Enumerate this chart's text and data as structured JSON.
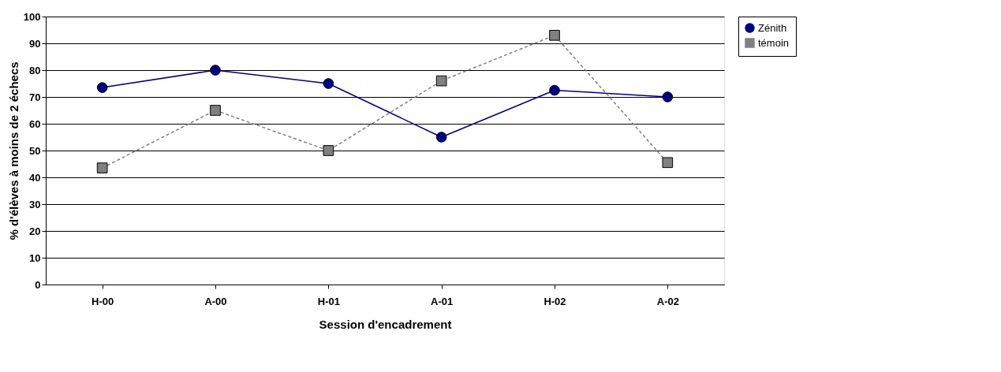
{
  "chart_data": {
    "type": "line",
    "xlabel": "Session d'encadrement",
    "ylabel": "% d'élèves à moins de 2 échecs",
    "categories": [
      "H-00",
      "A-00",
      "H-01",
      "A-01",
      "H-02",
      "A-02"
    ],
    "series": [
      {
        "name": "Zénith",
        "color": "#000080",
        "marker": "circle",
        "line_style": "solid",
        "values": [
          73.5,
          80,
          75,
          55,
          72.5,
          70
        ]
      },
      {
        "name": "témoin",
        "color": "#808080",
        "marker": "square",
        "line_style": "dashed",
        "values": [
          43.5,
          65,
          50,
          76,
          93,
          45.5
        ]
      }
    ],
    "ylim": [
      0,
      100
    ],
    "yticks": [
      0,
      10,
      20,
      30,
      40,
      50,
      60,
      70,
      80,
      90,
      100
    ],
    "grid": "y",
    "legend": "right"
  }
}
